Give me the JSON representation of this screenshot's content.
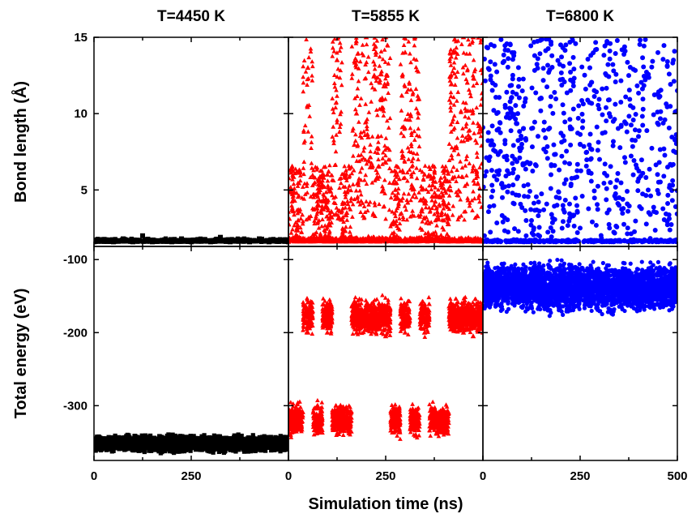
{
  "figure": {
    "xlabel": "Simulation time (ns)",
    "top_ylabel": "Bond length (Å)",
    "bottom_ylabel": "Total energy (eV)",
    "columns": [
      {
        "title": "T=4450 K",
        "color": "#000000",
        "marker": "square"
      },
      {
        "title": "T=5855 K",
        "color": "#ff0000",
        "marker": "triangle"
      },
      {
        "title": "T=6800 K",
        "color": "#0000ff",
        "marker": "circle"
      }
    ]
  },
  "chart_data": [
    {
      "type": "scatter",
      "panel": "bond-length",
      "ylabel": "Bond length (Å)",
      "xlim": [
        0,
        500
      ],
      "ylim": [
        1.3,
        15
      ],
      "yticks": [
        5,
        10,
        15
      ],
      "xticks": [
        0,
        250,
        500
      ],
      "series": [
        {
          "name": "T=4450 K",
          "color": "#000000",
          "marker": "square",
          "x": [
            0,
            25,
            50,
            75,
            100,
            125,
            150,
            175,
            200,
            225,
            250,
            275,
            300,
            325,
            350,
            375,
            400,
            425,
            450,
            475,
            500
          ],
          "y": [
            1.6,
            1.7,
            1.6,
            1.8,
            1.6,
            2.0,
            1.6,
            1.7,
            1.6,
            1.8,
            1.6,
            1.7,
            1.6,
            1.9,
            1.6,
            1.7,
            1.6,
            1.8,
            1.6,
            1.7,
            1.6
          ]
        },
        {
          "name": "T=5855 K",
          "color": "#ff0000",
          "marker": "triangle",
          "x": [
            0,
            25,
            50,
            75,
            100,
            125,
            150,
            175,
            200,
            225,
            250,
            275,
            300,
            325,
            350,
            375,
            400,
            425,
            450,
            475,
            500
          ],
          "y": [
            1.6,
            3.0,
            13.0,
            4.0,
            6.0,
            13.5,
            3.5,
            10.0,
            15.0,
            14.0,
            15.0,
            5.0,
            14.0,
            15.0,
            6.0,
            4.0,
            3.0,
            14.0,
            15.0,
            15.0,
            12.0
          ]
        },
        {
          "name": "T=6800 K",
          "color": "#0000ff",
          "marker": "circle",
          "x": [
            0,
            25,
            50,
            75,
            100,
            125,
            150,
            175,
            200,
            225,
            250,
            275,
            300,
            325,
            350,
            375,
            400,
            425,
            450,
            475,
            500
          ],
          "y": [
            1.6,
            12.0,
            4.5,
            14.0,
            8.0,
            3.0,
            11.0,
            6.0,
            14.5,
            9.0,
            2.5,
            13.0,
            7.0,
            10.0,
            4.0,
            12.5,
            8.5,
            5.0,
            14.0,
            6.5,
            11.5
          ]
        }
      ]
    },
    {
      "type": "scatter",
      "panel": "total-energy",
      "ylabel": "Total energy (eV)",
      "xlabel": "Simulation time (ns)",
      "xlim": [
        0,
        500
      ],
      "ylim": [
        -375,
        -82
      ],
      "yticks": [
        -300,
        -200,
        -100
      ],
      "xticks": [
        0,
        250,
        500
      ],
      "series": [
        {
          "name": "T=4450 K",
          "color": "#000000",
          "marker": "square",
          "x": [
            0,
            25,
            50,
            75,
            100,
            125,
            150,
            175,
            200,
            225,
            250,
            275,
            300,
            325,
            350,
            375,
            400,
            425,
            450,
            475,
            500
          ],
          "y": [
            -350,
            -352,
            -349,
            -353,
            -350,
            -351,
            -348,
            -352,
            -350,
            -351,
            -349,
            -352,
            -350,
            -351,
            -349,
            -353,
            -350,
            -352,
            -349,
            -351,
            -350
          ]
        },
        {
          "name": "T=5855 K",
          "color": "#ff0000",
          "marker": "triangle",
          "x": [
            0,
            25,
            50,
            75,
            100,
            125,
            150,
            175,
            200,
            225,
            250,
            275,
            300,
            325,
            350,
            375,
            400,
            425,
            450,
            475,
            500
          ],
          "y": [
            -320,
            -310,
            -200,
            -300,
            -200,
            -310,
            -320,
            -200,
            -190,
            -200,
            -205,
            -320,
            -200,
            -330,
            -200,
            -320,
            -310,
            -195,
            -200,
            -205,
            -200
          ]
        },
        {
          "name": "T=6800 K",
          "color": "#0000ff",
          "marker": "circle",
          "x": [
            0,
            25,
            50,
            75,
            100,
            125,
            150,
            175,
            200,
            225,
            250,
            275,
            300,
            325,
            350,
            375,
            400,
            425,
            450,
            475,
            500
          ],
          "y": [
            -140,
            -135,
            -138,
            -132,
            -140,
            -136,
            -134,
            -139,
            -137,
            -133,
            -140,
            -135,
            -138,
            -136,
            -134,
            -139,
            -137,
            -135,
            -138,
            -136,
            -140
          ]
        }
      ]
    }
  ]
}
